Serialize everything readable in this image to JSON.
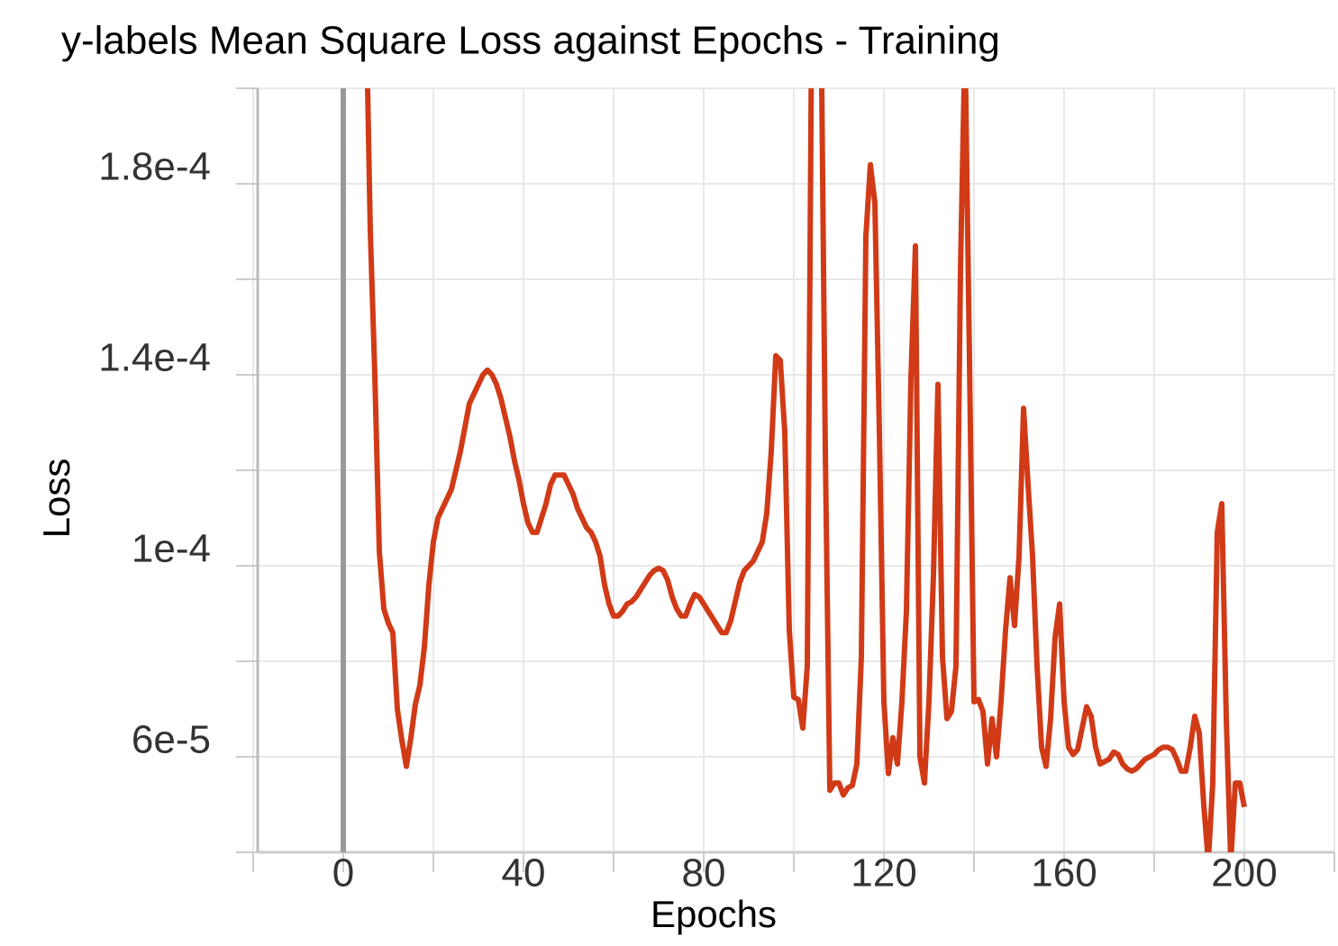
{
  "chart_data": {
    "type": "line",
    "title": "y-labels Mean Square Loss against Epochs - Training",
    "x_label": "Epochs",
    "y_label": "Loss",
    "color": "#d13a17",
    "xlim": [
      -19,
      220
    ],
    "ylim": [
      4e-05,
      0.0002
    ],
    "xticks": [
      0,
      40,
      80,
      120,
      160,
      200
    ],
    "xminor": [
      -20,
      20,
      60,
      100,
      140,
      180,
      220
    ],
    "yticks": [
      {
        "value": 6e-05,
        "label": "6e-5"
      },
      {
        "value": 0.0001,
        "label": "1e-4"
      },
      {
        "value": 0.00014,
        "label": "1.4e-4"
      },
      {
        "value": 0.00018,
        "label": "1.8e-4"
      }
    ],
    "yminor": [
      4e-05,
      8e-05,
      0.00012,
      0.00016,
      0.0002
    ],
    "vline": 0,
    "grid": true,
    "x": [
      5,
      6,
      7,
      8,
      9,
      10,
      11,
      12,
      13,
      14,
      15,
      16,
      17,
      18,
      19,
      20,
      21,
      22,
      23,
      24,
      25,
      26,
      27,
      28,
      29,
      30,
      31,
      32,
      33,
      34,
      35,
      36,
      37,
      38,
      39,
      40,
      41,
      42,
      43,
      44,
      45,
      46,
      47,
      48,
      49,
      50,
      51,
      52,
      53,
      54,
      55,
      56,
      57,
      58,
      59,
      60,
      61,
      62,
      63,
      64,
      65,
      66,
      67,
      68,
      69,
      70,
      71,
      72,
      73,
      74,
      75,
      76,
      77,
      78,
      79,
      80,
      81,
      82,
      83,
      84,
      85,
      86,
      87,
      88,
      89,
      90,
      91,
      92,
      93,
      94,
      95,
      96,
      97,
      98,
      99,
      100,
      101,
      102,
      103,
      104,
      105,
      106,
      107,
      108,
      109,
      110,
      111,
      112,
      113,
      114,
      115,
      116,
      117,
      118,
      119,
      120,
      121,
      122,
      123,
      124,
      125,
      126,
      127,
      128,
      129,
      130,
      131,
      132,
      133,
      134,
      135,
      136,
      137,
      138,
      139,
      140,
      141,
      142,
      143,
      144,
      145,
      146,
      147,
      148,
      149,
      150,
      151,
      152,
      153,
      154,
      155,
      156,
      157,
      158,
      159,
      160,
      161,
      162,
      163,
      164,
      165,
      166,
      167,
      168,
      169,
      170,
      171,
      172,
      173,
      174,
      175,
      176,
      177,
      178,
      179,
      180,
      181,
      182,
      183,
      184,
      185,
      186,
      187,
      188,
      189,
      190,
      191,
      192,
      193,
      194,
      195,
      196,
      197,
      198,
      199,
      200
    ],
    "values": [
      0.00022,
      0.00017,
      0.00014,
      0.000103,
      9.1e-05,
      8.8e-05,
      8.6e-05,
      7e-05,
      6.35e-05,
      5.8e-05,
      6.4e-05,
      7.1e-05,
      7.5e-05,
      8.3e-05,
      9.6e-05,
      0.000105,
      0.00011,
      0.000112,
      0.000114,
      0.000116,
      0.00012,
      0.000124,
      0.000129,
      0.000134,
      0.000136,
      0.000138,
      0.00014,
      0.000141,
      0.00014,
      0.000138,
      0.000135,
      0.000131,
      0.000127,
      0.000122,
      0.000118,
      0.000113,
      0.000109,
      0.000107,
      0.000107,
      0.00011,
      0.000113,
      0.000117,
      0.000119,
      0.000119,
      0.000119,
      0.000117,
      0.000115,
      0.000112,
      0.00011,
      0.000108,
      0.000107,
      0.000105,
      0.000102,
      9.6e-05,
      9.2e-05,
      8.95e-05,
      8.95e-05,
      9.05e-05,
      9.2e-05,
      9.25e-05,
      9.35e-05,
      9.5e-05,
      9.65e-05,
      9.8e-05,
      9.9e-05,
      9.95e-05,
      9.9e-05,
      9.7e-05,
      9.35e-05,
      9.1e-05,
      8.95e-05,
      8.95e-05,
      9.2e-05,
      9.4e-05,
      9.35e-05,
      9.2e-05,
      9.05e-05,
      8.9e-05,
      8.75e-05,
      8.6e-05,
      8.6e-05,
      8.85e-05,
      9.25e-05,
      9.65e-05,
      9.9e-05,
      0.0001,
      0.000101,
      0.000103,
      0.000105,
      0.000111,
      0.000124,
      0.000144,
      0.000143,
      0.000128,
      8.65e-05,
      7.25e-05,
      7.2e-05,
      6.6e-05,
      7.9e-05,
      0.00022,
      0.00024,
      0.00022,
      0.000124,
      5.3e-05,
      5.45e-05,
      5.45e-05,
      5.2e-05,
      5.35e-05,
      5.4e-05,
      5.85e-05,
      8.1e-05,
      0.000169,
      0.000184,
      0.000176,
      0.000128,
      7.15e-05,
      5.65e-05,
      6.4e-05,
      5.85e-05,
      7.15e-05,
      9.05e-05,
      0.000139,
      0.000167,
      6e-05,
      5.45e-05,
      7.15e-05,
      9.8e-05,
      0.000138,
      8.1e-05,
      6.8e-05,
      6.95e-05,
      7.9e-05,
      0.000162,
      0.00021,
      0.000143,
      7.15e-05,
      7.2e-05,
      6.95e-05,
      5.85e-05,
      6.8e-05,
      6e-05,
      7.15e-05,
      8.65e-05,
      9.75e-05,
      8.75e-05,
      0.000102,
      0.000133,
      0.000117,
      0.000102,
      7.9e-05,
      6.2e-05,
      5.8e-05,
      6.8e-05,
      8.5e-05,
      9.2e-05,
      7.15e-05,
      6.2e-05,
      6.05e-05,
      6.15e-05,
      6.6e-05,
      7.05e-05,
      6.85e-05,
      6.2e-05,
      5.85e-05,
      5.9e-05,
      5.95e-05,
      6.1e-05,
      6.05e-05,
      5.85e-05,
      5.75e-05,
      5.7e-05,
      5.75e-05,
      5.85e-05,
      5.95e-05,
      6e-05,
      6.05e-05,
      6.15e-05,
      6.2e-05,
      6.2e-05,
      6.15e-05,
      5.95e-05,
      5.7e-05,
      5.7e-05,
      6.2e-05,
      6.85e-05,
      6.5e-05,
      5e-05,
      3.8e-05,
      5.45e-05,
      0.000107,
      0.000113,
      6.8e-05,
      3.8e-05,
      5.45e-05,
      5.45e-05,
      4.95e-05
    ]
  }
}
